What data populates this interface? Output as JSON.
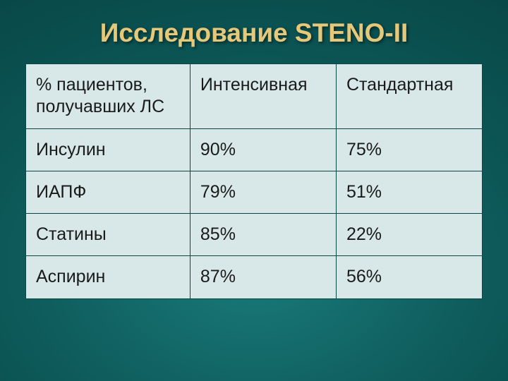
{
  "title": "Исследование STENO-II",
  "table": {
    "columns": [
      "% пациентов, получавших ЛС",
      "Интенсивная",
      "Стандартная"
    ],
    "rows": [
      [
        "Инсулин",
        "90%",
        "75%"
      ],
      [
        "ИАПФ",
        "79%",
        "51%"
      ],
      [
        "Статины",
        "85%",
        "22%"
      ],
      [
        "Аспирин",
        "87%",
        "56%"
      ]
    ],
    "col_widths_pct": [
      36,
      32,
      32
    ],
    "cell_bg": "#d8e8e8",
    "border_color": "#0a4848",
    "text_color": "#1a1a1a",
    "font_size_pt": 25
  },
  "theme": {
    "title_color": "#e6c87a",
    "title_fontsize": 37,
    "background_gradient_inner": "#1a7a7a",
    "background_gradient_mid": "#0d5858",
    "background_gradient_outer": "#043838"
  }
}
